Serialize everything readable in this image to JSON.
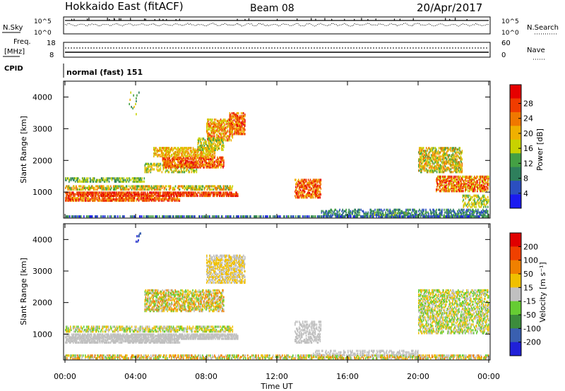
{
  "header": {
    "title": "Hokkaido East (fitACF)",
    "beam": "Beam 08",
    "date": "20/Apr/2017"
  },
  "top_panels": {
    "nsky_label": "N.Sky",
    "nsky_ticks": [
      "10^5",
      "10^0"
    ],
    "nsearch_label": "N.Search",
    "nsearch_ticks": [
      "10^5",
      "10^0"
    ],
    "freq_label_1": "Freq.",
    "freq_label_2": "[MHz]",
    "freq_ticks": [
      "18",
      "8"
    ],
    "nave_label": "Nave",
    "nave_ticks": [
      "60",
      "0"
    ],
    "cpid_label": "CPID",
    "cpid_value": "normal (fast) 151"
  },
  "chart_data": [
    {
      "type": "heatmap",
      "name": "power",
      "ylabel": "Slant Range [km]",
      "ylim": [
        180,
        4500
      ],
      "yticks": [
        "1000",
        "2000",
        "3000",
        "4000"
      ],
      "colorbar_label": "Power [dB]",
      "colorbar_ticks": [
        "4",
        "8",
        "12",
        "16",
        "20",
        "24",
        "28"
      ],
      "colorbar_colors": [
        "#1a1af0",
        "#2b4fc0",
        "#2e7f5c",
        "#44a044",
        "#c8d200",
        "#f0b000",
        "#f07800",
        "#f03c00",
        "#e60000"
      ]
    },
    {
      "type": "heatmap",
      "name": "velocity",
      "ylabel": "Slant Range [km]",
      "ylim": [
        180,
        4500
      ],
      "yticks": [
        "1000",
        "2000",
        "3000",
        "4000"
      ],
      "colorbar_label": "Velocity [m s⁻¹]",
      "colorbar_ticks": [
        "200",
        "100",
        "50",
        "15",
        "-15",
        "-50",
        "-100",
        "-200"
      ],
      "colorbar_colors": [
        "#2020d8",
        "#3a60b0",
        "#3c8c3c",
        "#66cc33",
        "#c0c0c0",
        "#f0c000",
        "#f08000",
        "#f04000",
        "#e00000"
      ]
    }
  ],
  "x_axis": {
    "label": "Time UT",
    "ticks": [
      "00:00",
      "04:00",
      "08:00",
      "12:00",
      "16:00",
      "20:00",
      "00:00"
    ]
  }
}
